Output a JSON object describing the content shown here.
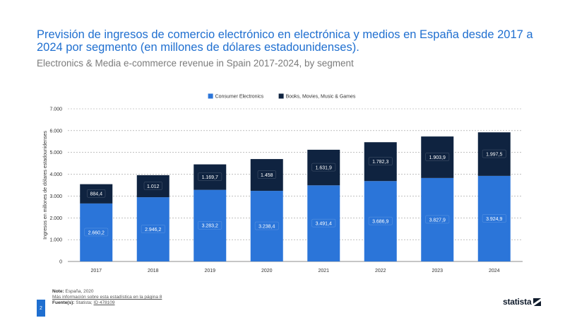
{
  "header": {
    "title": "Previsión de ingresos de comercio electrónico en electrónica y medios en España desde 2017 a 2024 por segmento (en millones de dólares estadounidenses).",
    "subtitle": "Electronics & Media e-commerce revenue in Spain 2017-2024, by segment"
  },
  "chart_data": {
    "type": "bar",
    "stacked": true,
    "categories": [
      "2017",
      "2018",
      "2019",
      "2020",
      "2021",
      "2022",
      "2023",
      "2024"
    ],
    "series": [
      {
        "name": "Consumer Electronics",
        "color": "#2b75d9",
        "values": [
          2660.2,
          2946.2,
          3283.2,
          3238.4,
          3491.4,
          3686.9,
          3827.9,
          3924.9
        ],
        "labels": [
          "2.660,2",
          "2.946,2",
          "3.283,2",
          "3.238,4",
          "3.491,4",
          "3.686,9",
          "3.827,9",
          "3.924,9"
        ]
      },
      {
        "name": "Books, Movies, Music & Games",
        "color": "#0f2340",
        "values": [
          884.4,
          1012,
          1169.7,
          1458,
          1631.9,
          1782.3,
          1903.9,
          1997.5
        ],
        "labels": [
          "884,4",
          "1.012",
          "1.169,7",
          "1.458",
          "1.631,9",
          "1.782,3",
          "1.903,9",
          "1.997,5"
        ]
      }
    ],
    "ylabel": "Ingresos en millones de dólares estadounidenses",
    "ylim": [
      0,
      7000
    ],
    "yticks": [
      0,
      1000,
      2000,
      3000,
      4000,
      5000,
      6000,
      7000
    ],
    "ytick_labels": [
      "0",
      "1.000",
      "2.000",
      "3.000",
      "4.000",
      "5.000",
      "6.000",
      "7.000"
    ],
    "grid": true,
    "legend_position": "top"
  },
  "footer": {
    "note_label": "Note:",
    "note_text": "España, 2020",
    "more_info": "Más información sobre esta estadística en la página 8",
    "source_label": "Fuente(s):",
    "source_text": "Statista;",
    "source_id": "ID 478109",
    "page_number": "2",
    "brand": "statista"
  }
}
